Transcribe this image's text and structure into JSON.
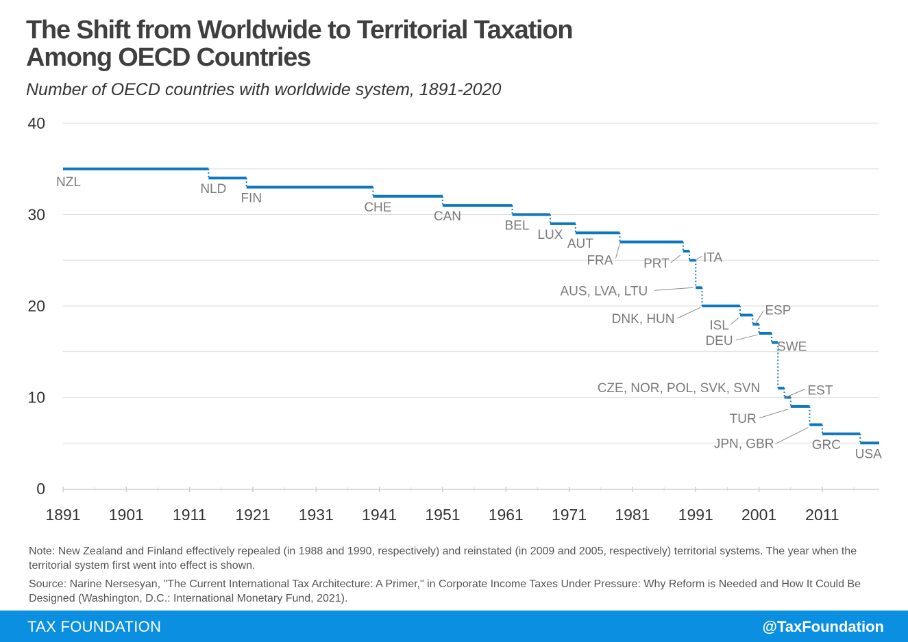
{
  "header": {
    "title_line1": "The Shift from Worldwide to Territorial Taxation",
    "title_line2": "Among OECD Countries",
    "subtitle": "Number of OECD countries with worldwide system, 1891-2020"
  },
  "chart_data": {
    "type": "line",
    "step": true,
    "title": "The Shift from Worldwide to Territorial Taxation Among OECD Countries",
    "subtitle": "Number of OECD countries with worldwide system, 1891-2020",
    "xlim": [
      1891,
      2020
    ],
    "ylim": [
      0,
      40
    ],
    "x_ticks": [
      1891,
      1901,
      1911,
      1921,
      1931,
      1941,
      1951,
      1961,
      1971,
      1981,
      1991,
      2001,
      2011
    ],
    "y_ticks": [
      0,
      10,
      20,
      30,
      40
    ],
    "grid": true,
    "line_color": "#0e76bc",
    "series": [
      {
        "steps": [
          {
            "start": 1891,
            "end": 1914,
            "value": 35
          },
          {
            "start": 1914,
            "end": 1920,
            "value": 34
          },
          {
            "start": 1920,
            "end": 1940,
            "value": 33
          },
          {
            "start": 1940,
            "end": 1951,
            "value": 32
          },
          {
            "start": 1951,
            "end": 1962,
            "value": 31
          },
          {
            "start": 1962,
            "end": 1968,
            "value": 30
          },
          {
            "start": 1968,
            "end": 1972,
            "value": 29
          },
          {
            "start": 1972,
            "end": 1979,
            "value": 28
          },
          {
            "start": 1979,
            "end": 1989,
            "value": 27
          },
          {
            "start": 1989,
            "end": 1990,
            "value": 26
          },
          {
            "start": 1990,
            "end": 1991,
            "value": 25
          },
          {
            "start": 1991,
            "end": 1992,
            "value": 22
          },
          {
            "start": 1992,
            "end": 1998,
            "value": 20
          },
          {
            "start": 1998,
            "end": 2000,
            "value": 19
          },
          {
            "start": 2000,
            "end": 2001,
            "value": 18
          },
          {
            "start": 2001,
            "end": 2003,
            "value": 17
          },
          {
            "start": 2003,
            "end": 2004,
            "value": 16
          },
          {
            "start": 2004,
            "end": 2005,
            "value": 11
          },
          {
            "start": 2005,
            "end": 2006,
            "value": 10
          },
          {
            "start": 2006,
            "end": 2009,
            "value": 9
          },
          {
            "start": 2009,
            "end": 2011,
            "value": 7
          },
          {
            "start": 2011,
            "end": 2017,
            "value": 6
          },
          {
            "start": 2017,
            "end": 2020,
            "value": 5
          }
        ]
      }
    ],
    "annotations": [
      {
        "text": "NZL",
        "x": 1891,
        "y": 35
      },
      {
        "text": "NLD",
        "x": 1914,
        "y": 34
      },
      {
        "text": "FIN",
        "x": 1920,
        "y": 33
      },
      {
        "text": "CHE",
        "x": 1940,
        "y": 32
      },
      {
        "text": "CAN",
        "x": 1951,
        "y": 31
      },
      {
        "text": "BEL",
        "x": 1962,
        "y": 30
      },
      {
        "text": "LUX",
        "x": 1968,
        "y": 29
      },
      {
        "text": "AUT",
        "x": 1972,
        "y": 28
      },
      {
        "text": "FRA",
        "x": 1979,
        "y": 27
      },
      {
        "text": "PRT",
        "x": 1989,
        "y": 26
      },
      {
        "text": "ITA",
        "x": 1990,
        "y": 25
      },
      {
        "text": "AUS, LVA, LTU",
        "x": 1991,
        "y": 22
      },
      {
        "text": "DNK, HUN",
        "x": 1992,
        "y": 20
      },
      {
        "text": "ISL",
        "x": 1998,
        "y": 19
      },
      {
        "text": "ESP",
        "x": 2000,
        "y": 18
      },
      {
        "text": "DEU",
        "x": 2001,
        "y": 17
      },
      {
        "text": "SWE",
        "x": 2003,
        "y": 16
      },
      {
        "text": "CZE, NOR, POL, SVK, SVN",
        "x": 2004,
        "y": 11
      },
      {
        "text": "EST",
        "x": 2005,
        "y": 10
      },
      {
        "text": "TUR",
        "x": 2006,
        "y": 9
      },
      {
        "text": "JPN, GBR",
        "x": 2009,
        "y": 7
      },
      {
        "text": "GRC",
        "x": 2011,
        "y": 6
      },
      {
        "text": "USA",
        "x": 2017,
        "y": 5
      }
    ]
  },
  "notes": {
    "note": "Note: New Zealand and Finland effectively repealed (in 1988 and 1990, respectively) and reinstated (in 2009 and 2005, respectively) territorial systems. The year when the territorial system first went into effect is shown.",
    "source": "Source: Narine Nersesyan, \"The Current International Tax Architecture: A Primer,\" in Corporate Income Taxes Under Pressure: Why Reform is Needed and How It Could Be Designed (Washington, D.C.: International Monetary Fund, 2021)."
  },
  "footer": {
    "brand": "TAX FOUNDATION",
    "handle": "@TaxFoundation",
    "bg_color": "#0b8fe1"
  }
}
